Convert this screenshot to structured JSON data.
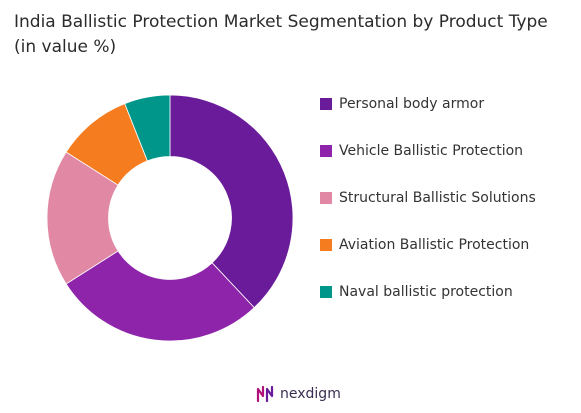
{
  "chart_data": {
    "type": "pie",
    "title": "India Ballistic Protection Market Segmentation by Product Type (in value %)",
    "categories": [
      "Personal body armor",
      "Vehicle Ballistic Protection",
      "Structural Ballistic Solutions",
      "Aviation Ballistic Protection",
      "Naval ballistic protection"
    ],
    "values": [
      38,
      28,
      18,
      10,
      6
    ],
    "colors": [
      "#6a1b9a",
      "#8e24aa",
      "#e088a4",
      "#f57c1f",
      "#00968a"
    ],
    "hole": 0.5,
    "legend": "right"
  },
  "brand": {
    "name": "nexdigm",
    "icon": "nexdigm-logo-icon"
  }
}
